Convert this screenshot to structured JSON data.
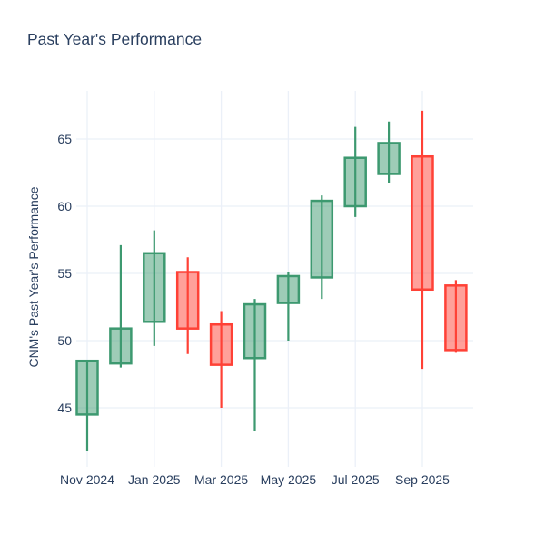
{
  "title": "Past Year's Performance",
  "chart_data": {
    "type": "candlestick",
    "title": "Past Year's Performance",
    "xlabel": "",
    "ylabel": "CNM's Past Year's Performance",
    "x_tick_labels": [
      "Nov 2024",
      "Jan 2025",
      "Mar 2025",
      "May 2025",
      "Jul 2025",
      "Sep 2025"
    ],
    "y_ticks": [
      45,
      50,
      55,
      60,
      65
    ],
    "ylim": [
      40.9,
      68.6
    ],
    "grid": true,
    "legend_position": "none",
    "categories": [
      "Nov 2024",
      "Dec 2024",
      "Jan 2025",
      "Feb 2025",
      "Mar 2025",
      "Apr 2025",
      "May 2025",
      "Jun 2025",
      "Jul 2025",
      "Aug 2025",
      "Sep 2025",
      "Oct 2025"
    ],
    "candles": [
      {
        "month": "Nov 2024",
        "open": 44.5,
        "high": 48.5,
        "low": 41.8,
        "close": 48.5
      },
      {
        "month": "Dec 2024",
        "open": 48.3,
        "high": 57.1,
        "low": 48.0,
        "close": 50.9
      },
      {
        "month": "Jan 2025",
        "open": 51.4,
        "high": 58.2,
        "low": 49.6,
        "close": 56.5
      },
      {
        "month": "Feb 2025",
        "open": 55.1,
        "high": 56.2,
        "low": 49.0,
        "close": 50.9
      },
      {
        "month": "Mar 2025",
        "open": 51.2,
        "high": 52.2,
        "low": 45.0,
        "close": 48.2
      },
      {
        "month": "Apr 2025",
        "open": 48.7,
        "high": 53.1,
        "low": 43.3,
        "close": 52.7
      },
      {
        "month": "May 2025",
        "open": 52.8,
        "high": 55.1,
        "low": 50.0,
        "close": 54.8
      },
      {
        "month": "Jun 2025",
        "open": 54.7,
        "high": 60.8,
        "low": 53.1,
        "close": 60.4
      },
      {
        "month": "Jul 2025",
        "open": 60.0,
        "high": 65.9,
        "low": 59.2,
        "close": 63.6
      },
      {
        "month": "Aug 2025",
        "open": 62.4,
        "high": 66.3,
        "low": 61.7,
        "close": 64.7
      },
      {
        "month": "Sep 2025",
        "open": 63.7,
        "high": 67.1,
        "low": 47.9,
        "close": 53.8
      },
      {
        "month": "Oct 2025",
        "open": 54.1,
        "high": 54.5,
        "low": 49.1,
        "close": 49.3
      }
    ],
    "colors": {
      "increasing": "#3D9970",
      "decreasing": "#FF4136",
      "grid": "#EBF0F8",
      "text": "#2a3f5f",
      "background": "#ffffff"
    }
  }
}
